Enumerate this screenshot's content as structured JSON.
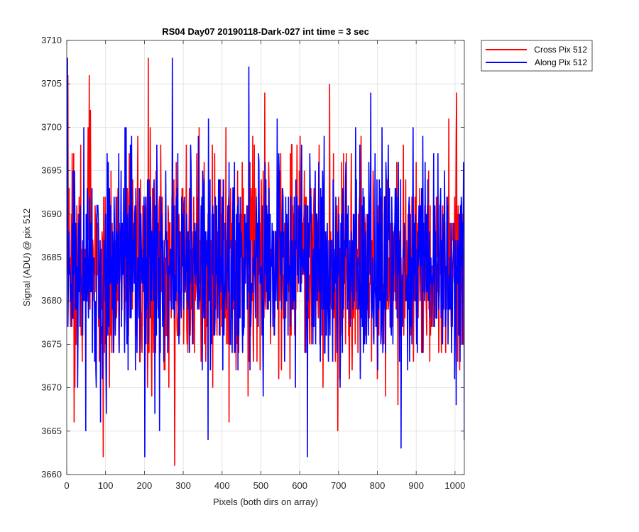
{
  "chart_data": {
    "type": "line",
    "title": "RS04 Day07 20190118-Dark-027 int time = 3 sec",
    "xlabel": "Pixels (both dirs on array)",
    "ylabel": "Signal (ADU) @ pix 512",
    "xlim": [
      0,
      1024
    ],
    "ylim": [
      3660,
      3710
    ],
    "xticks": [
      0,
      100,
      200,
      300,
      400,
      500,
      600,
      700,
      800,
      900,
      1000
    ],
    "yticks": [
      3660,
      3665,
      3670,
      3675,
      3680,
      3685,
      3690,
      3695,
      3700,
      3705,
      3710
    ],
    "grid": true,
    "legend_position": "outside-top-right",
    "series": [
      {
        "name": "Cross Pix 512",
        "color": "#ff0000",
        "n_points": 1024,
        "mean": 3684,
        "noise_sd": 6,
        "seed": 4051,
        "highlights": [
          {
            "x": 2,
            "y": 3706
          },
          {
            "x": 13,
            "y": 3697
          },
          {
            "x": 18,
            "y": 3666
          },
          {
            "x": 57,
            "y": 3706
          },
          {
            "x": 60,
            "y": 3702
          },
          {
            "x": 93,
            "y": 3662
          },
          {
            "x": 209,
            "y": 3708
          },
          {
            "x": 214,
            "y": 3700
          },
          {
            "x": 277,
            "y": 3661
          },
          {
            "x": 340,
            "y": 3700
          },
          {
            "x": 417,
            "y": 3666
          },
          {
            "x": 509,
            "y": 3704
          },
          {
            "x": 600,
            "y": 3699
          },
          {
            "x": 676,
            "y": 3705
          },
          {
            "x": 697,
            "y": 3665
          },
          {
            "x": 1003,
            "y": 3704
          }
        ]
      },
      {
        "name": "Along Pix 512",
        "color": "#0000ff",
        "n_points": 1024,
        "mean": 3684,
        "noise_sd": 6,
        "seed": 9173,
        "highlights": [
          {
            "x": 1,
            "y": 3708
          },
          {
            "x": 271,
            "y": 3708
          },
          {
            "x": 200,
            "y": 3662
          },
          {
            "x": 238,
            "y": 3665
          },
          {
            "x": 363,
            "y": 3664
          },
          {
            "x": 468,
            "y": 3707
          },
          {
            "x": 619,
            "y": 3662
          },
          {
            "x": 782,
            "y": 3704
          },
          {
            "x": 860,
            "y": 3663
          },
          {
            "x": 1023,
            "y": 3664
          },
          {
            "x": 101,
            "y": 3667
          },
          {
            "x": 152,
            "y": 3700
          },
          {
            "x": 811,
            "y": 3700
          },
          {
            "x": 541,
            "y": 3701
          }
        ]
      }
    ]
  }
}
